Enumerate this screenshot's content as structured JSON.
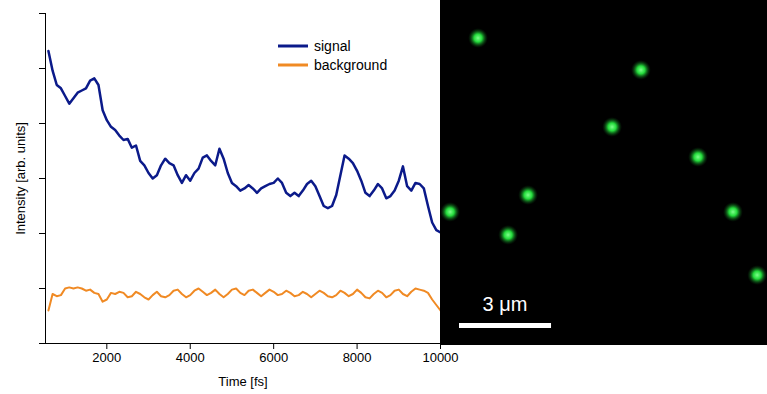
{
  "chart_data": {
    "type": "line",
    "x_label": "Time [fs]",
    "y_label": "Intensity [arb. units]",
    "x": [
      600,
      700,
      800,
      900,
      1000,
      1100,
      1200,
      1300,
      1400,
      1500,
      1600,
      1700,
      1800,
      1900,
      2000,
      2100,
      2200,
      2300,
      2400,
      2500,
      2600,
      2700,
      2800,
      2900,
      3000,
      3100,
      3200,
      3300,
      3400,
      3500,
      3600,
      3700,
      3800,
      3900,
      4000,
      4100,
      4200,
      4300,
      4400,
      4500,
      4600,
      4700,
      4800,
      4900,
      5000,
      5100,
      5200,
      5300,
      5400,
      5500,
      5600,
      5700,
      5800,
      5900,
      6000,
      6100,
      6200,
      6300,
      6400,
      6500,
      6600,
      6700,
      6800,
      6900,
      7000,
      7100,
      7200,
      7300,
      7400,
      7500,
      7600,
      7700,
      7800,
      7900,
      8000,
      8100,
      8200,
      8300,
      8400,
      8500,
      8600,
      8700,
      8800,
      8900,
      9000,
      9100,
      9200,
      9300,
      9400,
      9500,
      9600,
      9700,
      9800,
      9900,
      10000
    ],
    "series": [
      {
        "name": "signal",
        "color": "#0b1a8a",
        "values": [
          2.66,
          2.48,
          2.35,
          2.32,
          2.25,
          2.18,
          2.23,
          2.28,
          2.3,
          2.32,
          2.39,
          2.41,
          2.35,
          2.12,
          2.03,
          1.97,
          1.94,
          1.89,
          1.85,
          1.86,
          1.78,
          1.8,
          1.66,
          1.62,
          1.55,
          1.5,
          1.53,
          1.62,
          1.68,
          1.64,
          1.62,
          1.53,
          1.46,
          1.53,
          1.48,
          1.55,
          1.59,
          1.69,
          1.71,
          1.66,
          1.62,
          1.77,
          1.68,
          1.55,
          1.46,
          1.43,
          1.39,
          1.41,
          1.44,
          1.41,
          1.37,
          1.41,
          1.43,
          1.45,
          1.46,
          1.5,
          1.46,
          1.37,
          1.34,
          1.37,
          1.34,
          1.39,
          1.45,
          1.48,
          1.43,
          1.34,
          1.25,
          1.23,
          1.25,
          1.35,
          1.53,
          1.71,
          1.68,
          1.64,
          1.57,
          1.48,
          1.37,
          1.34,
          1.39,
          1.45,
          1.41,
          1.32,
          1.34,
          1.39,
          1.48,
          1.61,
          1.43,
          1.39,
          1.46,
          1.45,
          1.41,
          1.25,
          1.1,
          1.03,
          1.01
        ]
      },
      {
        "name": "background",
        "color": "#f08a24",
        "values": [
          0.3,
          0.45,
          0.43,
          0.44,
          0.5,
          0.51,
          0.5,
          0.51,
          0.5,
          0.48,
          0.49,
          0.46,
          0.45,
          0.38,
          0.4,
          0.46,
          0.45,
          0.47,
          0.46,
          0.42,
          0.43,
          0.47,
          0.45,
          0.42,
          0.4,
          0.44,
          0.47,
          0.43,
          0.42,
          0.44,
          0.48,
          0.49,
          0.45,
          0.42,
          0.44,
          0.48,
          0.5,
          0.47,
          0.44,
          0.46,
          0.49,
          0.45,
          0.42,
          0.45,
          0.49,
          0.5,
          0.46,
          0.44,
          0.48,
          0.49,
          0.46,
          0.43,
          0.46,
          0.49,
          0.47,
          0.44,
          0.45,
          0.48,
          0.46,
          0.43,
          0.44,
          0.47,
          0.45,
          0.42,
          0.45,
          0.48,
          0.46,
          0.43,
          0.42,
          0.44,
          0.48,
          0.46,
          0.43,
          0.45,
          0.49,
          0.46,
          0.42,
          0.41,
          0.45,
          0.48,
          0.46,
          0.42,
          0.44,
          0.48,
          0.49,
          0.45,
          0.43,
          0.47,
          0.5,
          0.49,
          0.48,
          0.46,
          0.4,
          0.35,
          0.3
        ]
      }
    ],
    "xlim": [
      530,
      10000
    ],
    "xticks": [
      2000,
      4000,
      6000,
      8000,
      10000
    ],
    "ylim": [
      0,
      3
    ],
    "yticks": [
      0,
      0.5,
      1,
      1.5,
      2,
      2.5,
      3
    ],
    "tick_labels": "x",
    "legend": "top",
    "grid": false
  },
  "image": {
    "scale_bar_label": "3 μm",
    "scale_bar_length_um": 3,
    "width_um": 10.66,
    "height_um": 11.25,
    "spots_um": [
      [
        1.24,
        1.24
      ],
      [
        6.55,
        2.28
      ],
      [
        5.61,
        4.14
      ],
      [
        8.41,
        5.12
      ],
      [
        2.87,
        6.36
      ],
      [
        0.33,
        6.91
      ],
      [
        2.22,
        7.66
      ],
      [
        9.55,
        6.91
      ],
      [
        10.34,
        8.97
      ]
    ]
  }
}
